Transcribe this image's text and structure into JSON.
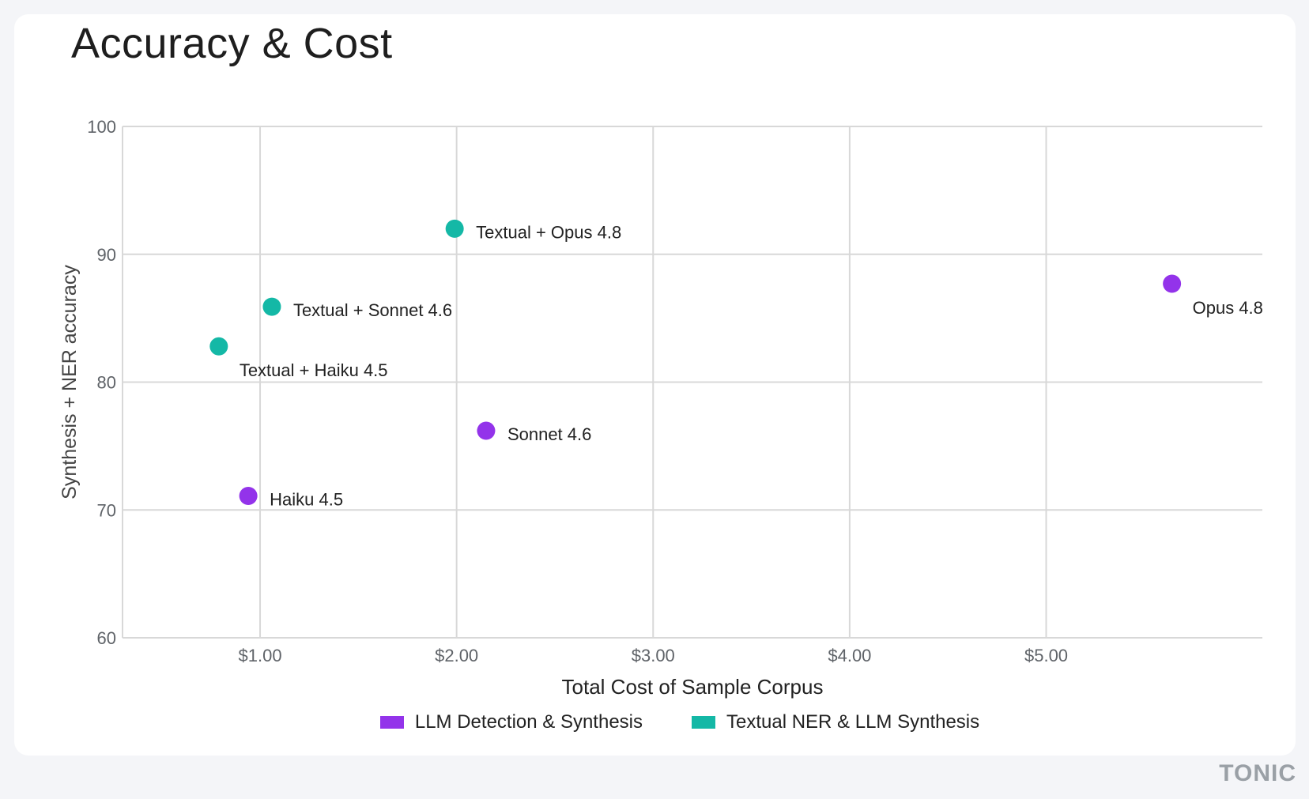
{
  "title": "Accuracy & Cost",
  "colors": {
    "llm": "#9333ea",
    "textual": "#14b8a6",
    "grid": "#d8d8d8",
    "axis_text": "#5f6368"
  },
  "legend": {
    "llm": "LLM Detection & Synthesis",
    "textual": "Textual NER & LLM Synthesis"
  },
  "logo": "TONIC",
  "chart_data": {
    "type": "scatter",
    "title": "Accuracy & Cost",
    "xlabel": "Total Cost of Sample Corpus",
    "ylabel": "Synthesis + NER accuracy",
    "xlim": [
      0.3,
      6.1
    ],
    "ylim": [
      60,
      100
    ],
    "x_ticks": [
      1,
      2,
      3,
      4,
      5
    ],
    "x_tick_labels": [
      "$1.00",
      "$2.00",
      "$3.00",
      "$4.00",
      "$5.00"
    ],
    "y_ticks": [
      60,
      70,
      80,
      90,
      100
    ],
    "y_tick_labels": [
      "60",
      "70",
      "80",
      "90",
      "100"
    ],
    "grid": true,
    "legend_position": "bottom",
    "series": [
      {
        "name": "LLM Detection & Synthesis",
        "color": "#9333ea",
        "points": [
          {
            "label": "Haiku 4.5",
            "x": 0.94,
            "y": 71.1,
            "label_pos": "right"
          },
          {
            "label": "Sonnet 4.6",
            "x": 2.15,
            "y": 76.2,
            "label_pos": "right"
          },
          {
            "label": "Opus 4.8",
            "x": 5.64,
            "y": 87.7,
            "label_pos": "below-right"
          }
        ]
      },
      {
        "name": "Textual NER & LLM Synthesis",
        "color": "#14b8a6",
        "points": [
          {
            "label": "Textual + Haiku 4.5",
            "x": 0.79,
            "y": 82.8,
            "label_pos": "below-right"
          },
          {
            "label": "Textual + Sonnet 4.6",
            "x": 1.06,
            "y": 85.9,
            "label_pos": "right"
          },
          {
            "label": "Textual + Opus 4.8",
            "x": 1.99,
            "y": 92.0,
            "label_pos": "right"
          }
        ]
      }
    ]
  }
}
